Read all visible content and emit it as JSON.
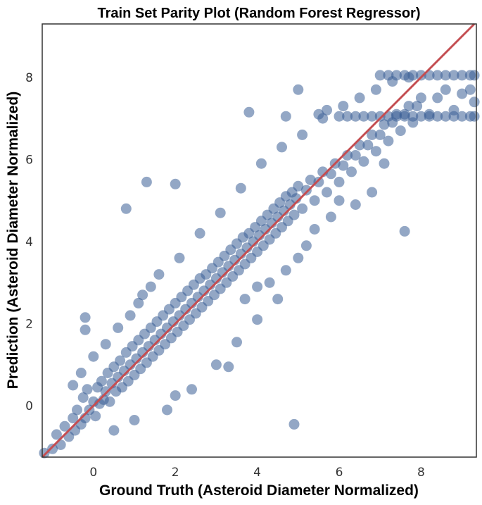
{
  "chart_data": {
    "type": "scatter",
    "title": "Train Set Parity Plot (Random Forest Regressor)",
    "xlabel": "Ground Truth (Asteroid Diameter Normalized)",
    "ylabel": "Prediction (Asteroid Diameter Normalized)",
    "xlim": [
      -1.25,
      9.35
    ],
    "ylim": [
      -1.25,
      9.3
    ],
    "xticks": [
      0,
      2,
      4,
      6,
      8
    ],
    "yticks": [
      0,
      2,
      4,
      6,
      8
    ],
    "grid": false,
    "colors": {
      "points": "#3a5f96",
      "parity_line": "#c44e52",
      "frame": "#333333"
    },
    "parity_line": {
      "x": [
        -1.25,
        9.35
      ],
      "y": [
        -1.25,
        9.35
      ]
    },
    "series": [
      {
        "points": [
          [
            -1.2,
            -1.15
          ],
          [
            -1.0,
            -1.05
          ],
          [
            -0.9,
            -0.7
          ],
          [
            -0.8,
            -0.95
          ],
          [
            -0.7,
            -0.5
          ],
          [
            -0.6,
            -0.75
          ],
          [
            -0.5,
            -0.3
          ],
          [
            -0.45,
            -0.6
          ],
          [
            -0.4,
            -0.1
          ],
          [
            -0.3,
            -0.45
          ],
          [
            -0.25,
            0.2
          ],
          [
            -0.2,
            -0.3
          ],
          [
            -0.15,
            0.4
          ],
          [
            -0.1,
            -0.1
          ],
          [
            0.0,
            0.1
          ],
          [
            0.05,
            -0.25
          ],
          [
            0.1,
            0.45
          ],
          [
            0.15,
            0.05
          ],
          [
            0.2,
            0.6
          ],
          [
            0.25,
            0.15
          ],
          [
            0.3,
            0.35
          ],
          [
            0.35,
            0.8
          ],
          [
            0.4,
            0.1
          ],
          [
            0.45,
            0.55
          ],
          [
            0.5,
            0.95
          ],
          [
            0.55,
            0.35
          ],
          [
            0.6,
            0.7
          ],
          [
            0.65,
            1.1
          ],
          [
            0.7,
            0.45
          ],
          [
            0.75,
            0.85
          ],
          [
            0.8,
            1.3
          ],
          [
            0.85,
            0.6
          ],
          [
            0.9,
            1.0
          ],
          [
            0.95,
            1.45
          ],
          [
            1.0,
            0.75
          ],
          [
            1.05,
            1.15
          ],
          [
            1.1,
            1.6
          ],
          [
            1.15,
            0.9
          ],
          [
            1.2,
            1.3
          ],
          [
            1.25,
            1.75
          ],
          [
            1.3,
            1.05
          ],
          [
            1.35,
            1.45
          ],
          [
            1.4,
            1.9
          ],
          [
            1.45,
            1.2
          ],
          [
            1.5,
            1.6
          ],
          [
            1.55,
            2.05
          ],
          [
            1.6,
            1.35
          ],
          [
            1.65,
            1.75
          ],
          [
            1.7,
            2.2
          ],
          [
            1.75,
            1.5
          ],
          [
            1.8,
            1.9
          ],
          [
            1.85,
            2.35
          ],
          [
            1.9,
            1.65
          ],
          [
            1.95,
            2.05
          ],
          [
            2.0,
            2.5
          ],
          [
            2.05,
            1.8
          ],
          [
            2.1,
            2.2
          ],
          [
            2.15,
            2.65
          ],
          [
            2.2,
            1.95
          ],
          [
            2.25,
            2.35
          ],
          [
            2.3,
            2.8
          ],
          [
            2.35,
            2.1
          ],
          [
            2.4,
            2.5
          ],
          [
            2.45,
            2.95
          ],
          [
            2.5,
            2.25
          ],
          [
            2.55,
            2.65
          ],
          [
            2.6,
            3.1
          ],
          [
            2.65,
            2.4
          ],
          [
            2.7,
            2.8
          ],
          [
            2.75,
            3.2
          ],
          [
            2.8,
            2.55
          ],
          [
            2.85,
            2.95
          ],
          [
            2.9,
            3.35
          ],
          [
            2.95,
            2.7
          ],
          [
            3.0,
            3.1
          ],
          [
            3.05,
            3.5
          ],
          [
            3.1,
            2.85
          ],
          [
            3.15,
            3.25
          ],
          [
            3.2,
            3.65
          ],
          [
            3.25,
            3.0
          ],
          [
            3.3,
            3.4
          ],
          [
            3.35,
            3.8
          ],
          [
            3.4,
            3.15
          ],
          [
            3.45,
            3.55
          ],
          [
            3.5,
            3.95
          ],
          [
            3.55,
            3.3
          ],
          [
            3.6,
            3.7
          ],
          [
            3.65,
            4.1
          ],
          [
            3.7,
            3.45
          ],
          [
            3.75,
            3.85
          ],
          [
            3.8,
            4.2
          ],
          [
            3.85,
            3.6
          ],
          [
            3.9,
            4.0
          ],
          [
            3.95,
            4.35
          ],
          [
            4.0,
            3.75
          ],
          [
            4.05,
            4.15
          ],
          [
            4.1,
            4.5
          ],
          [
            4.15,
            3.9
          ],
          [
            4.2,
            4.3
          ],
          [
            4.25,
            4.65
          ],
          [
            4.3,
            4.05
          ],
          [
            4.35,
            4.45
          ],
          [
            4.4,
            4.8
          ],
          [
            4.45,
            4.2
          ],
          [
            4.5,
            4.6
          ],
          [
            4.55,
            4.95
          ],
          [
            4.6,
            4.35
          ],
          [
            4.65,
            4.75
          ],
          [
            4.7,
            5.1
          ],
          [
            4.75,
            4.5
          ],
          [
            4.8,
            4.9
          ],
          [
            4.85,
            5.2
          ],
          [
            4.9,
            4.65
          ],
          [
            4.95,
            5.05
          ],
          [
            5.0,
            5.35
          ],
          [
            5.1,
            4.8
          ],
          [
            5.2,
            5.25
          ],
          [
            5.3,
            5.5
          ],
          [
            5.4,
            5.0
          ],
          [
            5.5,
            5.45
          ],
          [
            5.6,
            5.7
          ],
          [
            5.7,
            5.2
          ],
          [
            5.8,
            5.65
          ],
          [
            5.9,
            5.9
          ],
          [
            6.0,
            5.45
          ],
          [
            6.1,
            5.85
          ],
          [
            6.2,
            6.1
          ],
          [
            6.3,
            5.7
          ],
          [
            6.4,
            6.1
          ],
          [
            6.5,
            6.35
          ],
          [
            6.6,
            5.95
          ],
          [
            6.7,
            6.35
          ],
          [
            6.8,
            6.6
          ],
          [
            6.9,
            6.2
          ],
          [
            7.0,
            6.6
          ],
          [
            7.1,
            6.85
          ],
          [
            7.2,
            6.45
          ],
          [
            7.3,
            6.9
          ],
          [
            7.4,
            7.1
          ],
          [
            7.5,
            6.7
          ],
          [
            7.6,
            7.1
          ],
          [
            7.7,
            7.3
          ],
          [
            7.8,
            6.9
          ],
          [
            7.9,
            7.3
          ],
          [
            8.0,
            7.5
          ],
          [
            8.2,
            7.1
          ],
          [
            8.4,
            7.5
          ],
          [
            8.6,
            7.7
          ],
          [
            8.8,
            7.2
          ],
          [
            9.0,
            7.6
          ],
          [
            9.2,
            7.7
          ],
          [
            9.3,
            7.4
          ],
          [
            6.0,
            7.05
          ],
          [
            6.2,
            7.05
          ],
          [
            6.4,
            7.05
          ],
          [
            6.6,
            7.05
          ],
          [
            6.8,
            7.05
          ],
          [
            7.0,
            7.05
          ],
          [
            7.2,
            7.05
          ],
          [
            7.4,
            7.05
          ],
          [
            7.6,
            7.05
          ],
          [
            7.8,
            7.05
          ],
          [
            8.0,
            7.05
          ],
          [
            8.2,
            7.05
          ],
          [
            8.4,
            7.05
          ],
          [
            8.6,
            7.05
          ],
          [
            8.8,
            7.05
          ],
          [
            9.0,
            7.05
          ],
          [
            9.2,
            7.05
          ],
          [
            9.3,
            7.05
          ],
          [
            7.0,
            8.05
          ],
          [
            7.2,
            8.05
          ],
          [
            7.4,
            8.05
          ],
          [
            7.6,
            8.05
          ],
          [
            7.8,
            8.05
          ],
          [
            8.0,
            8.05
          ],
          [
            8.2,
            8.05
          ],
          [
            8.4,
            8.05
          ],
          [
            8.6,
            8.05
          ],
          [
            8.8,
            8.05
          ],
          [
            9.0,
            8.05
          ],
          [
            9.2,
            8.05
          ],
          [
            9.3,
            8.05
          ],
          [
            5.5,
            7.1
          ],
          [
            5.7,
            7.2
          ],
          [
            6.1,
            7.3
          ],
          [
            6.5,
            7.5
          ],
          [
            6.9,
            7.7
          ],
          [
            7.3,
            7.9
          ],
          [
            7.7,
            8.0
          ],
          [
            0.8,
            4.8
          ],
          [
            -0.2,
            2.15
          ],
          [
            -0.2,
            1.85
          ],
          [
            4.9,
            -0.45
          ],
          [
            7.6,
            4.25
          ],
          [
            1.3,
            5.45
          ],
          [
            2.0,
            5.4
          ],
          [
            3.8,
            7.15
          ],
          [
            4.7,
            7.05
          ],
          [
            5.0,
            7.7
          ],
          [
            2.0,
            0.25
          ],
          [
            2.4,
            0.4
          ],
          [
            3.0,
            1.0
          ],
          [
            3.5,
            1.55
          ],
          [
            4.0,
            2.1
          ],
          [
            4.5,
            2.6
          ],
          [
            3.3,
            0.95
          ],
          [
            1.8,
            -0.1
          ],
          [
            1.0,
            -0.35
          ],
          [
            0.5,
            -0.6
          ],
          [
            1.2,
            2.7
          ],
          [
            1.6,
            3.2
          ],
          [
            2.1,
            3.6
          ],
          [
            2.6,
            4.2
          ],
          [
            3.1,
            4.7
          ],
          [
            3.6,
            5.3
          ],
          [
            4.1,
            5.9
          ],
          [
            4.6,
            6.3
          ],
          [
            5.1,
            6.6
          ],
          [
            5.6,
            7.0
          ],
          [
            -0.5,
            0.5
          ],
          [
            -0.3,
            0.8
          ],
          [
            0.0,
            1.2
          ],
          [
            0.3,
            1.5
          ],
          [
            0.6,
            1.9
          ],
          [
            0.9,
            2.2
          ],
          [
            1.1,
            2.5
          ],
          [
            1.4,
            2.9
          ],
          [
            6.8,
            5.2
          ],
          [
            7.1,
            5.9
          ],
          [
            6.4,
            4.9
          ],
          [
            6.0,
            5.0
          ],
          [
            5.8,
            4.6
          ],
          [
            5.4,
            4.3
          ],
          [
            5.2,
            3.9
          ],
          [
            5.0,
            3.6
          ],
          [
            4.7,
            3.3
          ],
          [
            4.3,
            3.0
          ],
          [
            4.0,
            2.9
          ],
          [
            3.7,
            2.6
          ]
        ]
      }
    ]
  }
}
